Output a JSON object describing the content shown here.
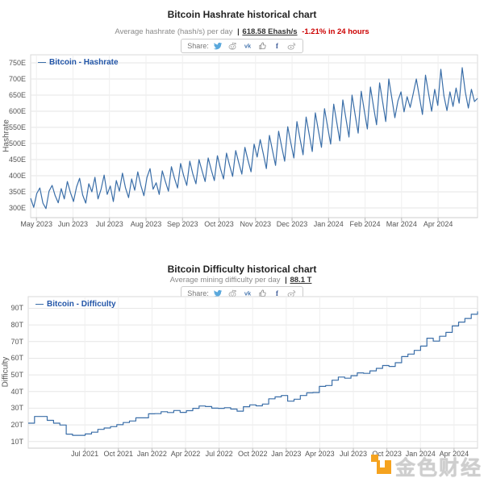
{
  "watermark": {
    "text": "金色财经",
    "logo_color": "#f5a31f"
  },
  "charts": [
    {
      "title": "Bitcoin Hashrate historical chart",
      "subtitle": "Average hashrate (hash/s) per day",
      "separator": "|",
      "value": "618.58 Ehash/s",
      "change": "-1.21% in 24 hours",
      "share_label": "Share:",
      "legend": "Bitcoin - Hashrate",
      "ylabel": "Hashrate",
      "share_icons": [
        "twitter-icon",
        "reddit-icon",
        "vk-icon",
        "thumbs-up-icon",
        "facebook-icon",
        "weibo-icon"
      ]
    },
    {
      "title": "Bitcoin Difficulty historical chart",
      "subtitle": "Average mining difficulty per day",
      "separator": "|",
      "value": "88.1 T",
      "change": "",
      "share_label": "Share:",
      "legend": "Bitcoin - Difficulty",
      "ylabel": "Difficulty",
      "share_icons": [
        "twitter-icon",
        "reddit-icon",
        "vk-icon",
        "thumbs-up-icon",
        "facebook-icon",
        "weibo-icon"
      ]
    }
  ],
  "chart_data": [
    {
      "type": "line",
      "step": false,
      "title": "Bitcoin Hashrate historical chart",
      "ylabel": "Hashrate",
      "xlabel": "",
      "legend_position": "top-left",
      "grid": true,
      "unit": "Ehash/s (E = exahash)",
      "x_labels": [
        "May 2023",
        "Jun 2023",
        "Jul 2023",
        "Aug 2023",
        "Sep 2023",
        "Oct 2023",
        "Nov 2023",
        "Dec 2023",
        "Jan 2024",
        "Feb 2024",
        "Mar 2024",
        "Apr 2024"
      ],
      "x_tick_start_frac": 0.013,
      "x_tick_step_frac": 0.0817,
      "yticks": [
        300,
        350,
        400,
        450,
        500,
        550,
        600,
        650,
        700,
        750
      ],
      "ytick_suffix": "E",
      "ylim": [
        270,
        775
      ],
      "series": [
        {
          "name": "Bitcoin - Hashrate",
          "color": "#3a6ea8",
          "values": [
            330,
            302,
            345,
            362,
            315,
            298,
            352,
            370,
            338,
            316,
            360,
            328,
            382,
            348,
            320,
            365,
            392,
            340,
            315,
            375,
            350,
            395,
            328,
            358,
            402,
            342,
            368,
            320,
            385,
            352,
            408,
            362,
            332,
            390,
            355,
            412,
            370,
            338,
            395,
            422,
            358,
            378,
            342,
            415,
            382,
            352,
            428,
            392,
            362,
            438,
            400,
            370,
            445,
            405,
            375,
            450,
            415,
            382,
            455,
            418,
            385,
            462,
            422,
            390,
            470,
            432,
            398,
            478,
            440,
            405,
            488,
            448,
            412,
            498,
            458,
            512,
            468,
            422,
            525,
            478,
            432,
            538,
            490,
            445,
            552,
            502,
            455,
            568,
            515,
            465,
            582,
            528,
            475,
            595,
            540,
            488,
            608,
            552,
            498,
            622,
            565,
            508,
            635,
            578,
            520,
            650,
            590,
            532,
            662,
            602,
            545,
            675,
            615,
            558,
            688,
            628,
            568,
            700,
            640,
            580,
            632,
            660,
            598,
            645,
            612,
            655,
            700,
            645,
            590,
            712,
            655,
            600,
            668,
            618,
            730,
            648,
            602,
            660,
            615,
            672,
            625,
            735,
            660,
            610,
            668,
            630,
            640
          ]
        }
      ]
    },
    {
      "type": "line",
      "step": true,
      "title": "Bitcoin Difficulty historical chart",
      "ylabel": "Difficulty",
      "xlabel": "",
      "legend_position": "top-left",
      "grid": true,
      "unit": "T (trillions)",
      "x_labels": [
        "Jul 2021",
        "Oct 2021",
        "Jan 2022",
        "Apr 2022",
        "Jul 2022",
        "Oct 2022",
        "Jan 2023",
        "Apr 2023",
        "Jul 2023",
        "Oct 2023",
        "Jan 2024",
        "Apr 2024"
      ],
      "x_tick_start_frac": 0.126,
      "x_tick_step_frac": 0.0747,
      "yticks": [
        10,
        20,
        30,
        40,
        50,
        60,
        70,
        80,
        90
      ],
      "ytick_suffix": "T",
      "ylim": [
        6,
        97
      ],
      "series": [
        {
          "name": "Bitcoin - Difficulty",
          "color": "#3a6ea8",
          "values": [
            21.0,
            25.0,
            25.0,
            22.7,
            21.0,
            19.9,
            14.4,
            13.7,
            13.7,
            14.5,
            15.6,
            17.3,
            18.1,
            18.9,
            20.1,
            21.4,
            22.3,
            24.2,
            24.2,
            26.6,
            26.7,
            27.9,
            27.4,
            28.6,
            27.5,
            28.5,
            29.9,
            31.3,
            31.0,
            30.0,
            29.9,
            30.3,
            29.5,
            28.2,
            30.9,
            32.0,
            31.4,
            32.5,
            35.6,
            36.8,
            37.6,
            34.2,
            35.4,
            37.6,
            39.2,
            39.4,
            43.1,
            43.6,
            46.8,
            48.7,
            48.0,
            49.5,
            51.2,
            50.9,
            52.4,
            53.9,
            55.6,
            55.1,
            57.3,
            61.0,
            62.5,
            64.7,
            67.3,
            72.0,
            70.3,
            73.2,
            75.5,
            79.4,
            81.7,
            83.9,
            86.4,
            88.1
          ]
        }
      ]
    }
  ]
}
